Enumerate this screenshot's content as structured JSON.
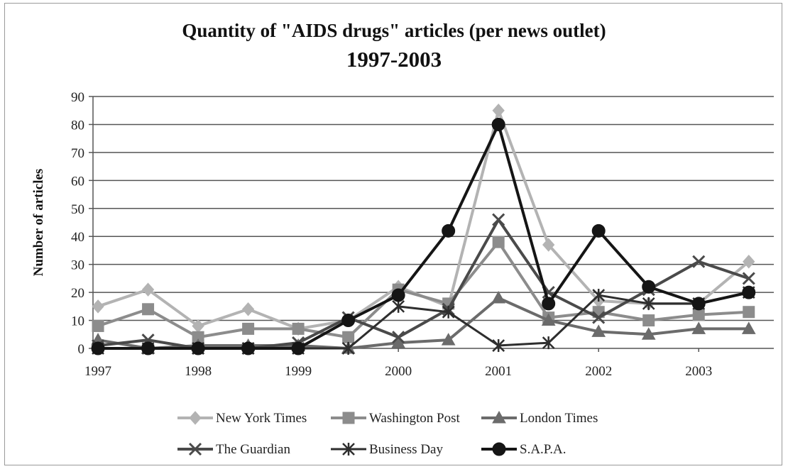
{
  "chart_data": {
    "type": "line",
    "title": "Quantity of \"AIDS drugs\" articles (per news outlet)",
    "subtitle": "1997-2003",
    "ylabel": "Number of articles",
    "xlabel": "",
    "ylim": [
      0,
      90
    ],
    "yticks": [
      "0",
      "10",
      "20",
      "30",
      "40",
      "50",
      "60",
      "70",
      "80",
      "90"
    ],
    "x_tick_labels": [
      "1997",
      "1998",
      "1999",
      "2000",
      "2001",
      "2002",
      "2003"
    ],
    "x": [
      1997,
      1997.5,
      1998,
      1998.5,
      1999,
      1999.5,
      2000,
      2000.5,
      2001,
      2001.5,
      2002,
      2002.5,
      2003,
      2003.5
    ],
    "grid": "horizontal",
    "legend_position": "bottom",
    "series": [
      {
        "name": "New York Times",
        "marker": "diamond",
        "color": "#b3b3b3",
        "width": 4,
        "values": [
          15,
          21,
          8,
          14,
          7,
          10,
          22,
          15,
          85,
          37,
          17,
          16,
          16,
          31
        ]
      },
      {
        "name": "Washington Post",
        "marker": "square",
        "color": "#8c8c8c",
        "width": 4,
        "values": [
          8,
          14,
          4,
          7,
          7,
          4,
          21,
          16,
          38,
          11,
          13,
          10,
          12,
          13
        ]
      },
      {
        "name": "London Times",
        "marker": "triangle",
        "color": "#6b6b6b",
        "width": 4,
        "values": [
          3,
          0,
          1,
          1,
          1,
          0,
          2,
          3,
          18,
          10,
          6,
          5,
          7,
          7
        ]
      },
      {
        "name": "The Guardian",
        "marker": "x",
        "color": "#4a4a4a",
        "width": 4,
        "values": [
          1,
          3,
          0,
          0,
          2,
          11,
          4,
          14,
          46,
          20,
          11,
          21,
          31,
          25
        ]
      },
      {
        "name": "Business Day",
        "marker": "star",
        "color": "#2e2e2e",
        "width": 3,
        "values": [
          0,
          0,
          0,
          0,
          0,
          0,
          15,
          13,
          1,
          2,
          19,
          16,
          16,
          20
        ]
      },
      {
        "name": "S.A.P.A.",
        "marker": "circle",
        "color": "#151515",
        "width": 4,
        "values": [
          0,
          0,
          0,
          0,
          0,
          10,
          19,
          42,
          80,
          16,
          42,
          22,
          16,
          20
        ]
      }
    ]
  }
}
